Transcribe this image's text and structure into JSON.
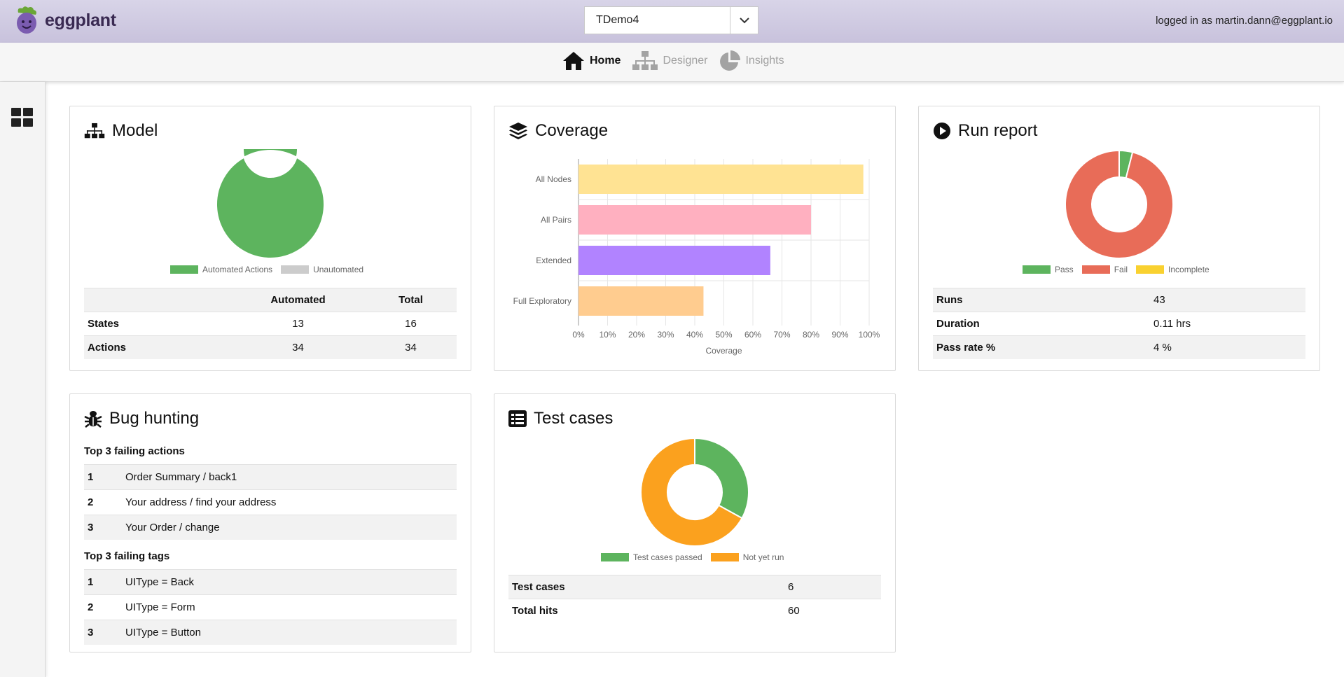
{
  "header": {
    "logo_text": "eggplant",
    "project": "TDemo4",
    "login_text": "logged in as martin.dann@eggplant.io"
  },
  "nav": {
    "home": "Home",
    "designer": "Designer",
    "insights": "Insights"
  },
  "model": {
    "title": "Model",
    "legend": [
      "Automated Actions",
      "Unautomated"
    ],
    "table": {
      "headers": [
        "",
        "Automated",
        "Total"
      ],
      "rows": [
        {
          "label": "States",
          "automated": "13",
          "total": "16"
        },
        {
          "label": "Actions",
          "automated": "34",
          "total": "34"
        }
      ]
    }
  },
  "coverage": {
    "title": "Coverage"
  },
  "run_report": {
    "title": "Run report",
    "legend": [
      "Pass",
      "Fail",
      "Incomplete"
    ],
    "rows": [
      {
        "label": "Runs",
        "value": "43"
      },
      {
        "label": "Duration",
        "value": "0.11 hrs"
      },
      {
        "label": "Pass rate %",
        "value": "4 %"
      }
    ]
  },
  "bug_hunting": {
    "title": "Bug hunting",
    "actions_heading": "Top 3 failing actions",
    "actions": [
      {
        "rank": "1",
        "name": "Order Summary / back1"
      },
      {
        "rank": "2",
        "name": "Your address / find your address"
      },
      {
        "rank": "3",
        "name": "Your Order / change"
      }
    ],
    "tags_heading": "Top 3 failing tags",
    "tags": [
      {
        "rank": "1",
        "name": "UIType = Back"
      },
      {
        "rank": "2",
        "name": "UIType = Form"
      },
      {
        "rank": "3",
        "name": "UIType = Button"
      }
    ]
  },
  "test_cases": {
    "title": "Test cases",
    "legend": [
      "Test cases passed",
      "Not yet run"
    ],
    "rows": [
      {
        "label": "Test cases",
        "value": "6"
      },
      {
        "label": "Total hits",
        "value": "60"
      }
    ]
  },
  "colors": {
    "green": "#5db45e",
    "grey": "#cccccc",
    "red": "#e86c58",
    "yellow": "#f9d130",
    "orange": "#fba11e",
    "bar_all_nodes": "#ffe393",
    "bar_all_pairs": "#ffb0c0",
    "bar_extended": "#b183ff",
    "bar_full_exploratory": "#ffcc8f"
  },
  "chart_data": [
    {
      "type": "pie",
      "name": "model",
      "labels": [
        "Automated Actions",
        "Unautomated"
      ],
      "values": [
        34,
        0
      ]
    },
    {
      "type": "bar",
      "name": "coverage",
      "orientation": "horizontal",
      "categories": [
        "All Nodes",
        "All Pairs",
        "Extended",
        "Full Exploratory"
      ],
      "values": [
        98,
        80,
        66,
        43
      ],
      "xlabel": "Coverage",
      "xlim": [
        0,
        100
      ],
      "ticks": [
        "0%",
        "10%",
        "20%",
        "30%",
        "40%",
        "50%",
        "60%",
        "70%",
        "80%",
        "90%",
        "100%"
      ],
      "grid": true,
      "legend": "none"
    },
    {
      "type": "pie",
      "name": "run_report",
      "labels": [
        "Pass",
        "Fail",
        "Incomplete"
      ],
      "values": [
        4,
        96,
        0
      ]
    },
    {
      "type": "pie",
      "name": "test_cases",
      "labels": [
        "Test cases passed",
        "Not yet run"
      ],
      "values": [
        33,
        67
      ]
    }
  ]
}
